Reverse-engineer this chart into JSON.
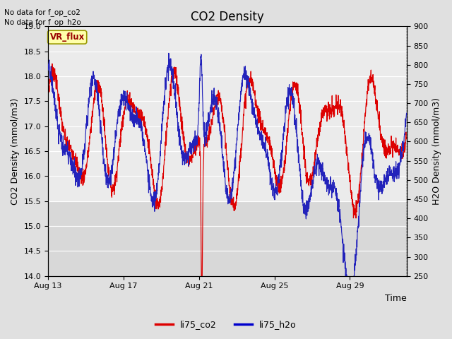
{
  "title": "CO2 Density",
  "xlabel": "Time",
  "ylabel_left": "CO2 Density (mmol/m3)",
  "ylabel_right": "H2O Density (mmol/m3)",
  "annotation_line1": "No data for f_op_co2",
  "annotation_line2": "No data for f_op_h2o",
  "vr_flux_label": "VR_flux",
  "legend_entries": [
    "li75_co2",
    "li75_h2o"
  ],
  "legend_colors": [
    "#dd0000",
    "#0000cc"
  ],
  "ylim_left": [
    14.0,
    19.0
  ],
  "ylim_right": [
    250,
    900
  ],
  "yticks_left": [
    14.0,
    14.5,
    15.0,
    15.5,
    16.0,
    16.5,
    17.0,
    17.5,
    18.0,
    18.5,
    19.0
  ],
  "yticks_right": [
    250,
    300,
    350,
    400,
    450,
    500,
    550,
    600,
    650,
    700,
    750,
    800,
    850,
    900
  ],
  "background_color": "#e0e0e0",
  "plot_bg_light": "#ebebeb",
  "plot_bg_dark": "#d8d8d8",
  "grid_color": "#ffffff",
  "co2_color": "#dd0000",
  "h2o_color": "#2222bb",
  "vr_flux_bg": "#ffffaa",
  "vr_flux_text": "#990000",
  "vr_flux_edge": "#999900",
  "x_tick_labels": [
    "Aug 13",
    "Aug 17",
    "Aug 21",
    "Aug 25",
    "Aug 29"
  ],
  "x_tick_positions": [
    0,
    4,
    8,
    12,
    16
  ],
  "num_days": 19,
  "seed": 7
}
